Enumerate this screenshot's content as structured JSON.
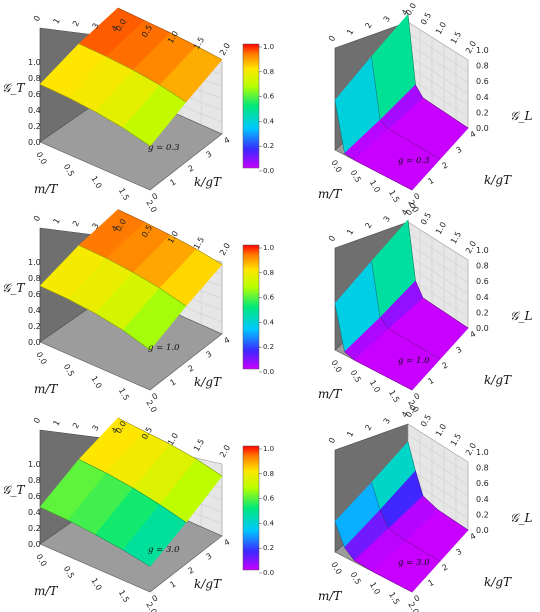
{
  "colorbar": {
    "ticks": [
      "1.0",
      "0.8",
      "0.6",
      "0.4",
      "0.2",
      "0.0"
    ]
  },
  "chart_data": [
    {
      "type": "surface",
      "row": 0,
      "zlabel": "𝒢_T",
      "xlabel": "m/T",
      "ylabel": "k/gT",
      "annotation": "g = 0.3",
      "x_ticks": [
        "0.0",
        "0.5",
        "1.0",
        "1.5",
        "2.0"
      ],
      "y_ticks": [
        "0",
        "1",
        "2",
        "3",
        "4"
      ],
      "z_ticks": [
        "0.0",
        "0.2",
        "0.4",
        "0.6",
        "0.8",
        "1.0"
      ],
      "top_ticks": [
        "0.0",
        "0.5",
        "1.0",
        "1.5",
        "2.0"
      ],
      "m_grid": [
        0.0,
        1.0,
        2.0
      ],
      "k_grid": [
        0,
        1,
        2,
        3,
        4
      ],
      "values": [
        [
          0.93,
          0.96,
          0.98,
          0.99,
          1.0
        ],
        [
          0.75,
          0.82,
          0.86,
          0.88,
          0.89
        ],
        [
          0.55,
          0.63,
          0.68,
          0.71,
          0.72
        ]
      ],
      "zlim": [
        0,
        1
      ]
    },
    {
      "type": "surface",
      "row": 0,
      "zlabel": "𝒢_L",
      "xlabel": "m/T",
      "ylabel": "k/gT",
      "annotation": "g = 0.3",
      "x_ticks": [
        "0.0",
        "0.5",
        "1.0",
        "1.5",
        "2.0"
      ],
      "y_ticks": [
        "0",
        "1",
        "2",
        "3",
        "4"
      ],
      "z_ticks": [
        "0.0",
        "0.2",
        "0.4",
        "0.6",
        "0.8",
        "1.0"
      ],
      "top_ticks": [
        "0.0",
        "0.5",
        "1.0",
        "1.5",
        "2.0"
      ],
      "m_grid": [
        0.0,
        1.0,
        2.0
      ],
      "k_grid": [
        0,
        0.5,
        1,
        2,
        4
      ],
      "values": [
        [
          0.92,
          0.1,
          0.0,
          0.0,
          0.0
        ],
        [
          0.78,
          0.05,
          0.0,
          0.0,
          0.0
        ],
        [
          0.62,
          0.02,
          0.0,
          0.0,
          0.0
        ]
      ],
      "zlim": [
        0,
        1
      ]
    },
    {
      "type": "surface",
      "row": 1,
      "zlabel": "𝒢_T",
      "xlabel": "m/T",
      "ylabel": "k/gT",
      "annotation": "g = 1.0",
      "x_ticks": [
        "0.0",
        "0.5",
        "1.0",
        "1.5",
        "2.0"
      ],
      "y_ticks": [
        "0",
        "1",
        "2",
        "3",
        "4"
      ],
      "z_ticks": [
        "0.0",
        "0.2",
        "0.4",
        "0.6",
        "0.8",
        "1.0"
      ],
      "top_ticks": [
        "0.0",
        "0.5",
        "1.0",
        "1.5",
        "2.0"
      ],
      "m_grid": [
        0.0,
        1.0,
        2.0
      ],
      "k_grid": [
        0,
        1,
        2,
        3,
        4
      ],
      "values": [
        [
          0.87,
          0.92,
          0.95,
          0.97,
          0.98
        ],
        [
          0.7,
          0.78,
          0.83,
          0.86,
          0.87
        ],
        [
          0.5,
          0.6,
          0.66,
          0.69,
          0.7
        ]
      ],
      "zlim": [
        0,
        1
      ]
    },
    {
      "type": "surface",
      "row": 1,
      "zlabel": "𝒢_L",
      "xlabel": "m/T",
      "ylabel": "k/gT",
      "annotation": "g = 1.0",
      "x_ticks": [
        "0.0",
        "0.5",
        "1.0",
        "1.5",
        "2.0"
      ],
      "y_ticks": [
        "0",
        "1",
        "2",
        "3",
        "4"
      ],
      "z_ticks": [
        "0.0",
        "0.2",
        "0.4",
        "0.6",
        "0.8",
        "1.0"
      ],
      "top_ticks": [
        "0.0",
        "0.5",
        "1.0",
        "1.5",
        "2.0"
      ],
      "m_grid": [
        0.0,
        1.0,
        2.0
      ],
      "k_grid": [
        0,
        0.5,
        1,
        2,
        4
      ],
      "values": [
        [
          0.85,
          0.15,
          0.0,
          0.0,
          0.0
        ],
        [
          0.72,
          0.08,
          0.0,
          0.0,
          0.0
        ],
        [
          0.58,
          0.04,
          0.0,
          0.0,
          0.0
        ]
      ],
      "zlim": [
        0,
        1
      ]
    },
    {
      "type": "surface",
      "row": 2,
      "zlabel": "𝒢_T",
      "xlabel": "m/T",
      "ylabel": "k/gT",
      "annotation": "g = 3.0",
      "x_ticks": [
        "0.0",
        "0.5",
        "1.0",
        "1.5",
        "2.0"
      ],
      "y_ticks": [
        "0",
        "1",
        "2",
        "3",
        "4"
      ],
      "z_ticks": [
        "0.0",
        "0.2",
        "0.4",
        "0.6",
        "0.8",
        "1.0"
      ],
      "top_ticks": [
        "0.0",
        "0.5",
        "1.0",
        "1.5",
        "2.0"
      ],
      "m_grid": [
        0.0,
        1.0,
        2.0
      ],
      "k_grid": [
        0,
        1,
        2,
        3,
        4
      ],
      "values": [
        [
          0.75,
          0.82,
          0.86,
          0.88,
          0.9
        ],
        [
          0.52,
          0.6,
          0.66,
          0.7,
          0.72
        ],
        [
          0.32,
          0.38,
          0.42,
          0.45,
          0.46
        ]
      ],
      "zlim": [
        0,
        1
      ]
    },
    {
      "type": "surface",
      "row": 2,
      "zlabel": "𝒢_L",
      "xlabel": "m/T",
      "ylabel": "k/gT",
      "annotation": "g = 3.0",
      "x_ticks": [
        "0.0",
        "0.5",
        "1.0",
        "1.5",
        "2.0"
      ],
      "y_ticks": [
        "0",
        "1",
        "2",
        "3",
        "4"
      ],
      "z_ticks": [
        "0.0",
        "0.2",
        "0.4",
        "0.6",
        "0.8",
        "1.0"
      ],
      "top_ticks": [
        "0.0",
        "0.5",
        "1.0",
        "1.5",
        "2.0"
      ],
      "m_grid": [
        0.0,
        1.0,
        2.0
      ],
      "k_grid": [
        0,
        0.5,
        1,
        2,
        4
      ],
      "values": [
        [
          0.6,
          0.3,
          0.05,
          0.0,
          0.0
        ],
        [
          0.48,
          0.2,
          0.03,
          0.0,
          0.0
        ],
        [
          0.38,
          0.12,
          0.02,
          0.0,
          0.0
        ]
      ],
      "zlim": [
        0,
        1
      ]
    }
  ]
}
